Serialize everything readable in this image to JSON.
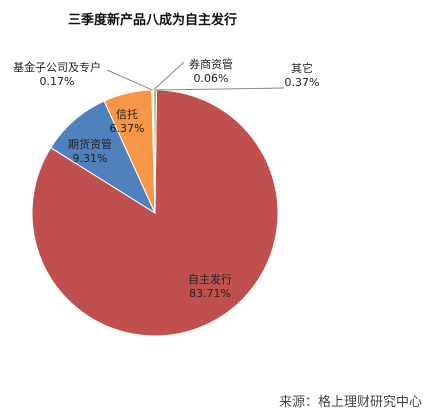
{
  "chart_data": {
    "type": "pie",
    "title": "三季度新产品八成为自主发行",
    "categories": [
      "自主发行",
      "期货资管",
      "信托",
      "基金子公司及专户",
      "券商资管",
      "其它"
    ],
    "values": [
      83.71,
      9.31,
      6.37,
      0.17,
      0.06,
      0.37
    ],
    "value_labels": [
      "83.71%",
      "9.31%",
      "6.37%",
      "0.17%",
      "0.06%",
      "0.37%"
    ],
    "colors": [
      "#c0504d",
      "#4f81bd",
      "#f79646",
      "#8064a2",
      "#4bacc6",
      "#9bbb59"
    ],
    "source": "来源：格上理财研究中心"
  }
}
